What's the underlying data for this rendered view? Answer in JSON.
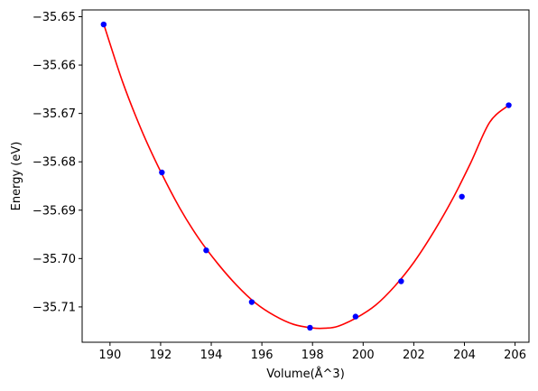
{
  "chart_data": {
    "type": "scatter",
    "title": "",
    "xlabel": "Volume(Å^3)",
    "ylabel": "Energy (eV)",
    "xlim": [
      188.9,
      206.55
    ],
    "ylim": [
      -35.7173,
      -35.6486
    ],
    "xticks": [
      190,
      192,
      194,
      196,
      198,
      200,
      202,
      204,
      206
    ],
    "xtick_labels": [
      "190",
      "192",
      "194",
      "196",
      "198",
      "200",
      "202",
      "204",
      "206"
    ],
    "yticks": [
      -35.65,
      -35.66,
      -35.67,
      -35.68,
      -35.69,
      -35.7,
      -35.71
    ],
    "ytick_labels": [
      "−35.65",
      "−35.66",
      "−35.67",
      "−35.68",
      "−35.69",
      "−35.70",
      "−35.71"
    ],
    "grid": false,
    "series": [
      {
        "kind": "scatter",
        "color": "#0000ff",
        "x": [
          189.75,
          192.05,
          193.8,
          195.6,
          197.9,
          199.7,
          201.5,
          203.9,
          205.75
        ],
        "y": [
          -35.6516,
          -35.6822,
          -35.6983,
          -35.709,
          -35.7143,
          -35.712,
          -35.7047,
          -35.6872,
          -35.6683
        ]
      },
      {
        "kind": "line",
        "color": "#ff0000",
        "x": [
          189.75,
          190.5,
          191.25,
          192.0,
          192.75,
          193.5,
          194.25,
          195.0,
          195.75,
          196.5,
          197.25,
          198.0,
          198.5,
          199.0,
          199.75,
          200.5,
          201.25,
          202.0,
          202.75,
          203.5,
          204.25,
          205.0,
          205.75
        ],
        "y": [
          -35.6515,
          -35.6635,
          -35.6735,
          -35.682,
          -35.6895,
          -35.6958,
          -35.701,
          -35.7055,
          -35.7092,
          -35.7118,
          -35.7136,
          -35.71435,
          -35.7144,
          -35.714,
          -35.7122,
          -35.7096,
          -35.7057,
          -35.7008,
          -35.6948,
          -35.688,
          -35.6802,
          -35.6718,
          -35.6683
        ]
      }
    ]
  }
}
